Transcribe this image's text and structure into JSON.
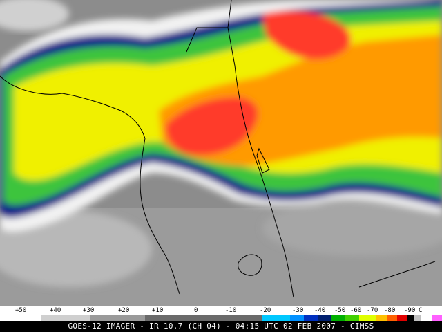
{
  "scale": {
    "labels": [
      "+50",
      "+40",
      "+30",
      "+20",
      "+10",
      "0",
      "-10",
      "-20",
      "-30",
      "-40",
      "-50",
      "-60",
      "-70",
      "-80",
      "-90",
      "C"
    ],
    "colors": [
      "#ffffff",
      "#cfcfcf",
      "#9a9a9a",
      "#6a6a6a",
      "#00c8ff",
      "#0090ff",
      "#0030c0",
      "#002070",
      "#00b000",
      "#40d000",
      "#e0ff00",
      "#ffc000",
      "#ff6000",
      "#e00000",
      "#000000",
      "#c0c0c0",
      "#ffffff",
      "#ff60ff",
      "#ffffff"
    ]
  },
  "caption": "GOES-12 IMAGER - IR 10.7 (CH 04) - 04:15 UTC 02 FEB 2007 - CIMSS",
  "palette": {
    "gray": "#8c8c8c",
    "white": "#f2f2f2",
    "navy": "#0b1a8a",
    "green": "#3cc43c",
    "yellow": "#f0f000",
    "orange": "#ff9a00",
    "red": "#ff3b2b"
  }
}
